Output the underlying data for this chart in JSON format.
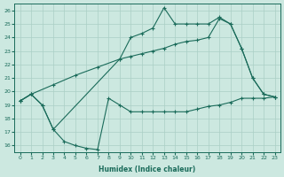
{
  "xlabel": "Humidex (Indice chaleur)",
  "bg_color": "#cce8e0",
  "line_color": "#1a6b5a",
  "grid_color": "#aacfc5",
  "xlim": [
    -0.5,
    23.5
  ],
  "ylim": [
    15.5,
    26.5
  ],
  "xticks": [
    0,
    1,
    2,
    3,
    4,
    5,
    6,
    7,
    8,
    9,
    10,
    11,
    12,
    13,
    14,
    15,
    16,
    17,
    18,
    19,
    20,
    21,
    22,
    23
  ],
  "yticks": [
    16,
    17,
    18,
    19,
    20,
    21,
    22,
    23,
    24,
    25,
    26
  ],
  "line1_x": [
    0,
    1,
    2,
    3,
    4,
    5,
    6,
    7,
    8,
    9,
    10,
    11,
    12,
    13,
    14,
    15,
    16,
    17,
    18,
    19,
    20,
    21,
    22,
    23
  ],
  "line1_y": [
    19.3,
    19.8,
    19.0,
    17.2,
    16.3,
    16.0,
    15.8,
    15.7,
    19.5,
    19.0,
    18.5,
    18.5,
    18.5,
    18.5,
    18.5,
    18.5,
    18.7,
    18.9,
    19.0,
    19.2,
    19.5,
    19.5,
    19.5,
    19.6
  ],
  "line2_x": [
    0,
    1,
    3,
    5,
    7,
    9,
    10,
    11,
    12,
    13,
    14,
    15,
    16,
    17,
    18,
    19,
    20,
    21,
    22,
    23
  ],
  "line2_y": [
    19.3,
    19.8,
    20.5,
    21.2,
    21.8,
    22.4,
    22.6,
    22.8,
    23.0,
    23.2,
    23.5,
    23.7,
    23.8,
    24.0,
    25.4,
    25.0,
    23.2,
    21.0,
    19.8,
    19.6
  ],
  "line3_x": [
    0,
    1,
    2,
    3,
    9,
    10,
    11,
    12,
    13,
    14,
    15,
    16,
    17,
    18,
    19,
    20,
    21,
    22,
    23
  ],
  "line3_y": [
    19.3,
    19.8,
    19.0,
    17.2,
    22.4,
    24.0,
    24.3,
    24.7,
    26.2,
    25.0,
    25.0,
    25.0,
    25.0,
    25.5,
    25.0,
    23.2,
    21.0,
    19.8,
    19.6
  ]
}
